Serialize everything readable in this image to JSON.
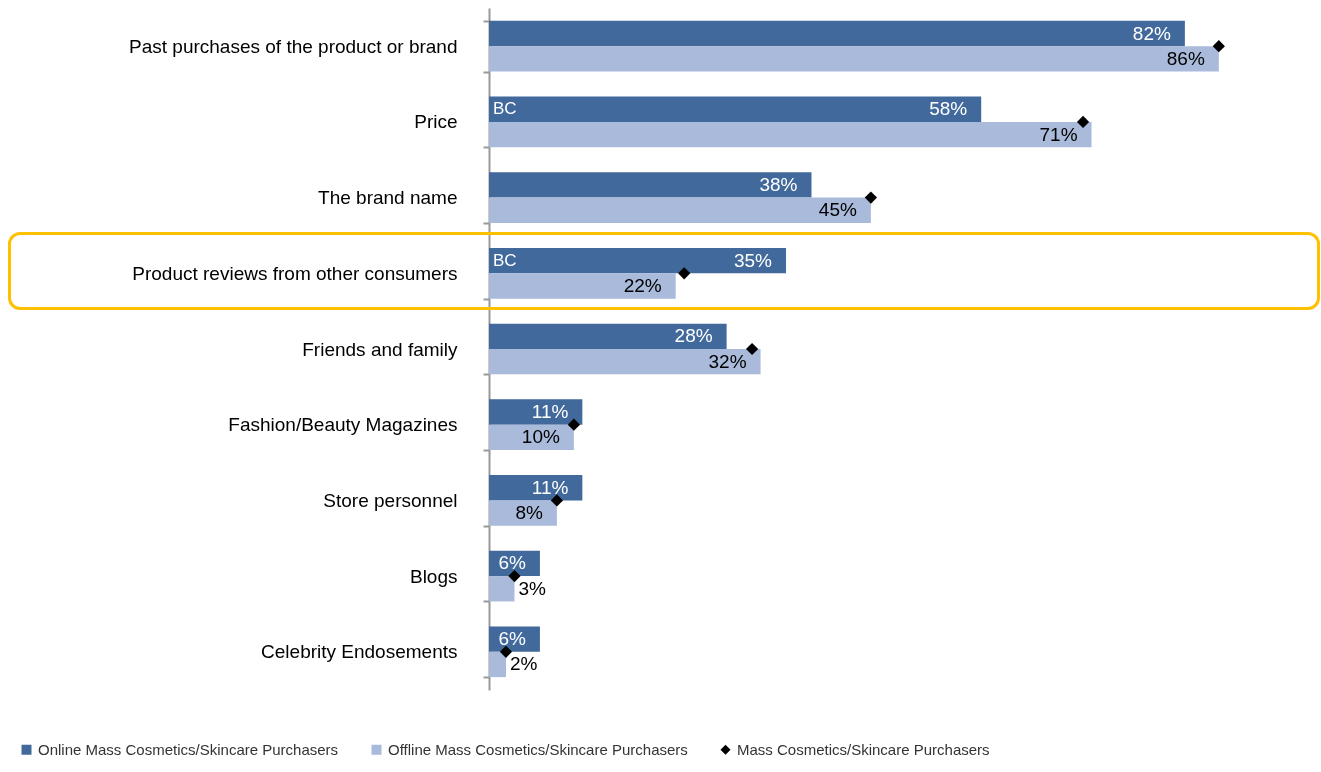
{
  "chart_data": {
    "type": "bar",
    "orientation": "horizontal",
    "legend": "bottom",
    "categories": [
      "Past purchases of the product or brand",
      "Price",
      "The brand name",
      "Product reviews from other consumers",
      "Friends and family",
      "Fashion/Beauty  Magazines",
      "Store personnel",
      "Blogs",
      "Celebrity Endosements"
    ],
    "series": [
      {
        "name": "Online Mass Cosmetics/Skincare Purchasers",
        "color": "#41699b",
        "values": [
          82,
          58,
          38,
          35,
          28,
          11,
          11,
          6,
          6
        ],
        "value_labels": [
          "82%",
          "58%",
          "38%",
          "35%",
          "28%",
          "11%",
          "11%",
          "6%",
          "6%"
        ]
      },
      {
        "name": "Offline Mass Cosmetics/Skincare Purchasers",
        "color": "#a9badb",
        "values": [
          86,
          71,
          45,
          22,
          32,
          10,
          8,
          3,
          2
        ],
        "value_labels": [
          "86%",
          "71%",
          "45%",
          "22%",
          "32%",
          "10%",
          "8%",
          "3%",
          "2%"
        ]
      },
      {
        "name": "Mass Cosmetics/Skincare Purchasers",
        "type": "scatter",
        "marker": "diamond",
        "color": "#000000",
        "values": [
          86,
          70,
          45,
          23,
          31,
          10,
          8,
          3,
          2
        ]
      }
    ],
    "annotations": [
      {
        "text": "BC",
        "x": 0,
        "y": "Price"
      },
      {
        "text": "BC",
        "x": 0,
        "y": "Product reviews from other consumers"
      }
    ]
  }
}
